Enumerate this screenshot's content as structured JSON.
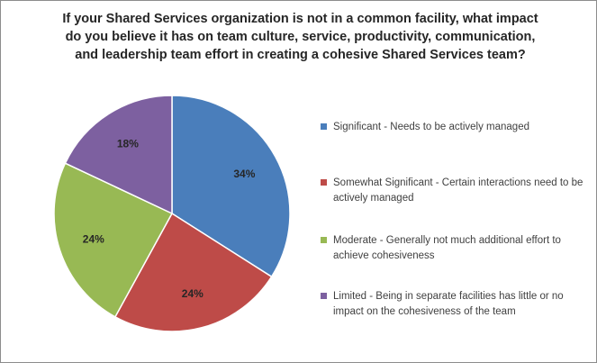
{
  "chart_data": {
    "type": "pie",
    "title_lines": [
      "If your Shared Services organization is not in a common facility, what impact",
      "do you believe it has on team culture, service, productivity, communication,",
      "and leadership team effort in creating a cohesive Shared Services team?"
    ],
    "categories": [
      "Significant - Needs to be actively managed",
      "Somewhat Significant - Certain interactions need to be actively managed",
      "Moderate - Generally not much additional effort to achieve cohesiveness",
      "Limited - Being in separate facilities has little or no impact on the cohesiveness of the team"
    ],
    "values": [
      34,
      24,
      24,
      18
    ],
    "data_labels": [
      "34%",
      "24%",
      "24%",
      "18%"
    ],
    "colors": [
      "#4a7ebb",
      "#be4b48",
      "#98b954",
      "#7d60a0"
    ],
    "legend_position": "right"
  }
}
